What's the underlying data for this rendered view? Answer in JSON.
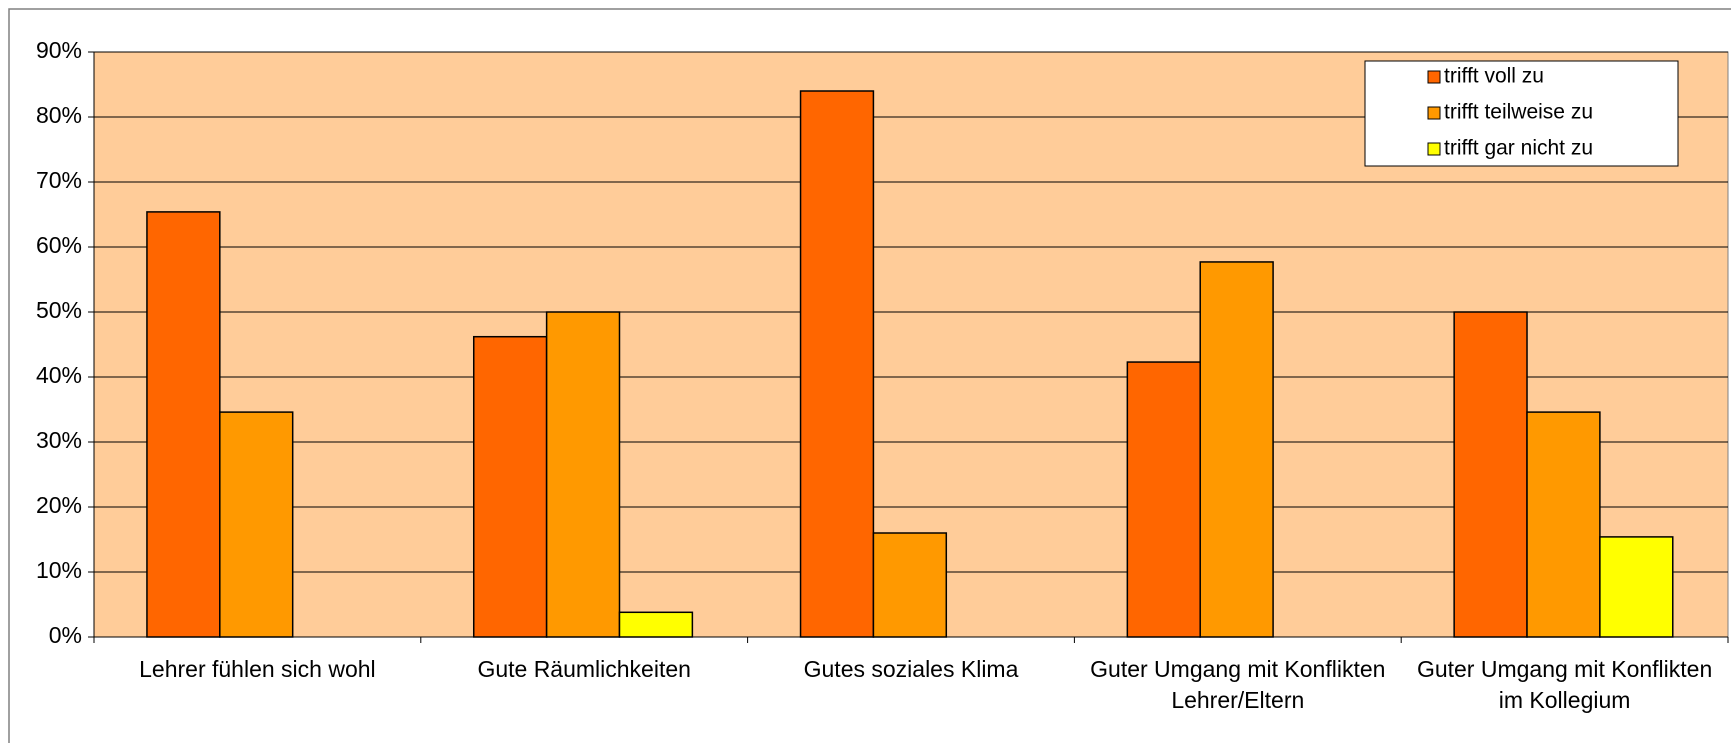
{
  "chart_data": {
    "type": "bar",
    "categories": [
      "Lehrer fühlen sich wohl",
      "Gute Räumlichkeiten",
      "Gutes soziales Klima",
      "Guter Umgang mit Konflikten Lehrer/Eltern",
      "Guter Umgang mit Konflikten im Kollegium"
    ],
    "series": [
      {
        "name": "trifft voll zu",
        "color": "#ff6600",
        "values": [
          65.4,
          46.2,
          84,
          42.3,
          50
        ]
      },
      {
        "name": "trifft teilweise zu",
        "color": "#ff9900",
        "values": [
          34.6,
          50,
          16,
          57.7,
          34.6
        ]
      },
      {
        "name": "trifft gar nicht zu",
        "color": "#ffff00",
        "values": [
          0,
          3.8,
          0,
          0,
          15.4
        ]
      }
    ],
    "ylim": [
      0,
      90
    ],
    "yticks": [
      {
        "value": 0,
        "label": "0%"
      },
      {
        "value": 10,
        "label": "10%"
      },
      {
        "value": 20,
        "label": "20%"
      },
      {
        "value": 30,
        "label": "30%"
      },
      {
        "value": 40,
        "label": "40%"
      },
      {
        "value": 50,
        "label": "50%"
      },
      {
        "value": 60,
        "label": "60%"
      },
      {
        "value": 70,
        "label": "70%"
      },
      {
        "value": 80,
        "label": "80%"
      },
      {
        "value": 90,
        "label": "90%"
      }
    ],
    "grid": true,
    "legend": "upper right",
    "plot_background": "#ffcc99"
  }
}
